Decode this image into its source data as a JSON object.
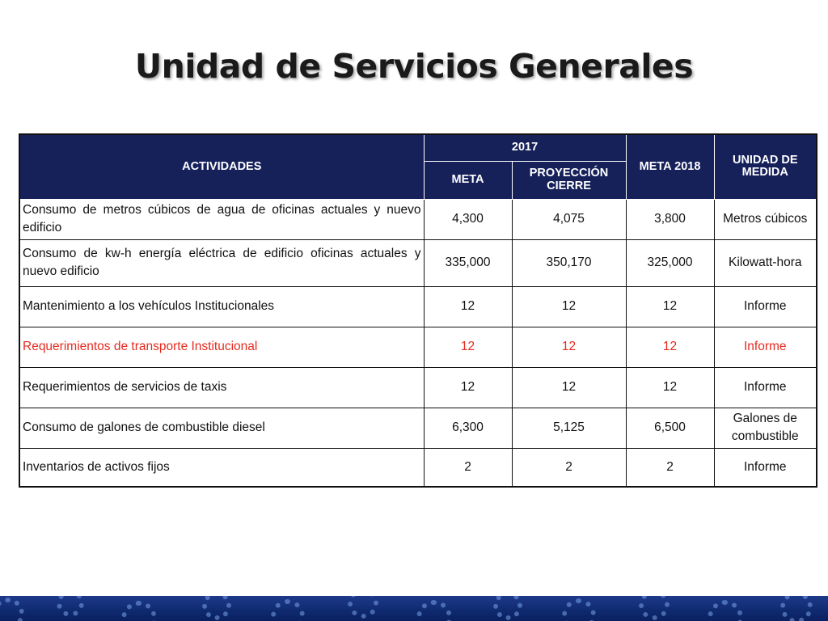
{
  "title": "Unidad de Servicios Generales",
  "table": {
    "headers": {
      "actividades": "ACTIVIDADES",
      "year": "2017",
      "meta": "META",
      "proyeccion": "PROYECCIÓN CIERRE",
      "meta2018": "META 2018",
      "unidad": "UNIDAD DE MEDIDA"
    },
    "rows": [
      {
        "actividad": "Consumo de metros cúbicos de agua de oficinas actuales y nuevo edificio",
        "meta": "4,300",
        "proyeccion": "4,075",
        "meta2018": "3,800",
        "unidad": "Metros cúbicos"
      },
      {
        "actividad": "Consumo de kw-h energía eléctrica de edificio oficinas actuales y nuevo edificio",
        "meta": "335,000",
        "proyeccion": "350,170",
        "meta2018": "325,000",
        "unidad": "Kilowatt-hora"
      },
      {
        "actividad": "Mantenimiento a los  vehículos Institucionales",
        "meta": "12",
        "proyeccion": "12",
        "meta2018": "12",
        "unidad": "Informe"
      },
      {
        "actividad": "Requerimientos de transporte Institucional",
        "meta": "12",
        "proyeccion": "12",
        "meta2018": "12",
        "unidad": "Informe"
      },
      {
        "actividad": "Requerimientos de servicios  de taxis",
        "meta": "12",
        "proyeccion": "12",
        "meta2018": "12",
        "unidad": "Informe"
      },
      {
        "actividad": "Consumo de galones de combustible diesel",
        "meta": "6,300",
        "proyeccion": "5,125",
        "meta2018": "6,500",
        "unidad": "Galones de combustible"
      },
      {
        "actividad": "Inventarios  de activos fijos",
        "meta": "2",
        "proyeccion": "2",
        "meta2018": "2",
        "unidad": "Informe"
      }
    ]
  },
  "colors": {
    "header_bg": "#16215a",
    "highlight_text": "#e52b20",
    "footer_band": "#0f2a6f"
  }
}
